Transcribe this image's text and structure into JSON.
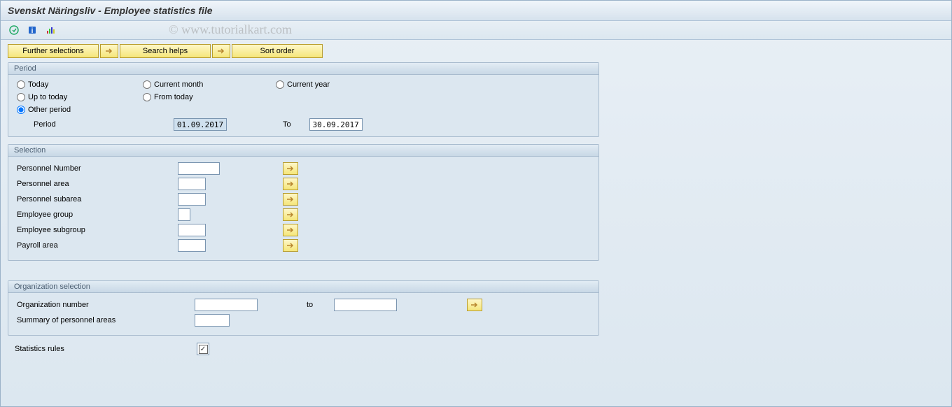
{
  "title": "Svenskt Näringsliv - Employee statistics file",
  "watermark": "© www.tutorialkart.com",
  "toolbar_buttons": {
    "further_selections": "Further selections",
    "search_helps": "Search helps",
    "sort_order": "Sort order"
  },
  "period": {
    "title": "Period",
    "today": "Today",
    "current_month": "Current month",
    "current_year": "Current year",
    "up_to_today": "Up to today",
    "from_today": "From today",
    "other_period": "Other period",
    "period_label": "Period",
    "from_date": "01.09.2017",
    "to_label": "To",
    "to_date": "30.09.2017"
  },
  "selection": {
    "title": "Selection",
    "rows": [
      {
        "label": "Personnel Number",
        "width": "w1"
      },
      {
        "label": "Personnel area",
        "width": "w2"
      },
      {
        "label": "Personnel subarea",
        "width": "w2"
      },
      {
        "label": "Employee group",
        "width": "w3"
      },
      {
        "label": "Employee subgroup",
        "width": "w2"
      },
      {
        "label": "Payroll area",
        "width": "w2"
      }
    ]
  },
  "organization": {
    "title": "Organization selection",
    "org_number": "Organization number",
    "to_label": "to",
    "summary": "Summary of personnel areas"
  },
  "statistics_rules": "Statistics rules",
  "colors": {
    "button_gradient_top": "#fef7c8",
    "button_gradient_bottom": "#f5e67a",
    "button_border": "#b89d2e",
    "bg_gradient_top": "#e8eff5",
    "bg_gradient_bottom": "#dce7f0",
    "border": "#a8bbce",
    "input_border": "#7a95b0"
  }
}
